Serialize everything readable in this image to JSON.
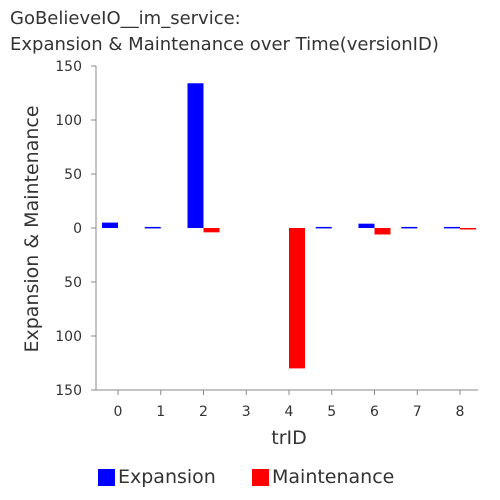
{
  "chart_data": {
    "type": "bar",
    "title": "GoBelieveIO__im_service:",
    "subtitle": "Expansion & Maintenance over Time(versionID)",
    "xlabel": "trID",
    "ylabel": "Expansion & Maintenance",
    "categories": [
      "0",
      "1",
      "2",
      "3",
      "4",
      "5",
      "6",
      "7",
      "8"
    ],
    "ylim": [
      -150,
      150
    ],
    "yticks": [
      150,
      100,
      50,
      0,
      -50,
      -100,
      -150
    ],
    "ytick_labels": [
      "150",
      "100",
      "50",
      "0",
      "50",
      "100",
      "150"
    ],
    "series": [
      {
        "name": "Expansion",
        "color": "#0000ff",
        "values": [
          5,
          1,
          134,
          0,
          0,
          1,
          4,
          1,
          1
        ]
      },
      {
        "name": "Maintenance",
        "color": "#ff0000",
        "values": [
          0,
          0,
          -4,
          0,
          -130,
          0,
          -6,
          0,
          -1
        ]
      }
    ],
    "grid": false,
    "legend_position": "bottom"
  }
}
